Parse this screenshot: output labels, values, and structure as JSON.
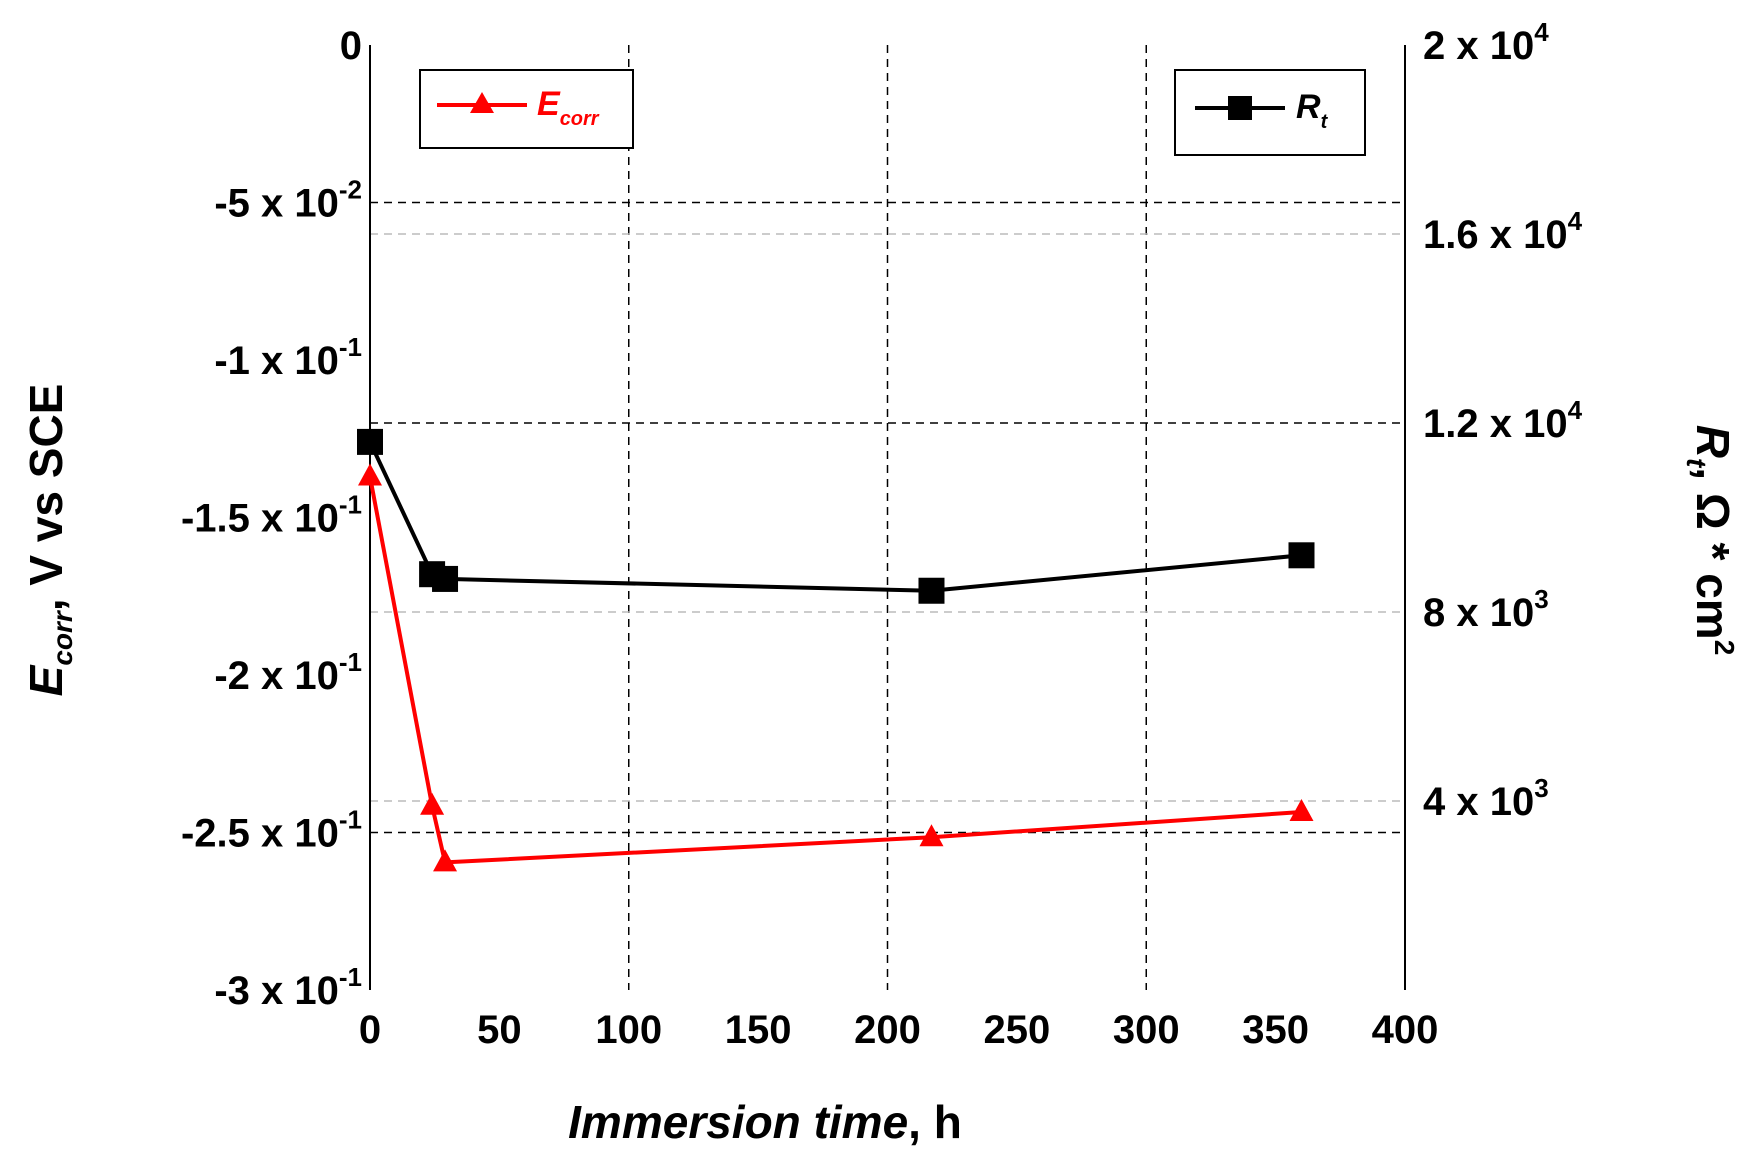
{
  "chart_data": {
    "type": "line",
    "xlabel_main": "Immersion time",
    "xlabel_unit": ", h",
    "xlim": [
      0,
      400
    ],
    "x_ticks": [
      "0",
      "50",
      "100",
      "150",
      "200",
      "250",
      "300",
      "350",
      "400"
    ],
    "left_axis": {
      "label_main": "E",
      "label_sub": "corr",
      "label_rest": ", V vs SCE",
      "ylim": [
        -0.3,
        0
      ],
      "ticks": [
        {
          "value": 0,
          "mantissa": "0",
          "exp": ""
        },
        {
          "value": -0.05,
          "mantissa": "-5 x 10",
          "exp": "-2"
        },
        {
          "value": -0.1,
          "mantissa": "-1 x 10",
          "exp": "-1"
        },
        {
          "value": -0.15,
          "mantissa": "-1.5 x 10",
          "exp": "-1"
        },
        {
          "value": -0.2,
          "mantissa": "-2 x 10",
          "exp": "-1"
        },
        {
          "value": -0.25,
          "mantissa": "-2.5 x 10",
          "exp": "-1"
        },
        {
          "value": -0.3,
          "mantissa": "-3 x 10",
          "exp": "-1"
        }
      ]
    },
    "right_axis": {
      "label_main": "R",
      "label_sub": "t",
      "label_rest": ", Ω * cm",
      "label_sup": "2",
      "ylim": [
        0,
        20000
      ],
      "ticks": [
        {
          "value": 20000,
          "mantissa": "2 x 10",
          "exp": "4"
        },
        {
          "value": 16000,
          "mantissa": "1.6 x 10",
          "exp": "4"
        },
        {
          "value": 12000,
          "mantissa": "1.2 x 10",
          "exp": "4"
        },
        {
          "value": 8000,
          "mantissa": "8 x 10",
          "exp": "3"
        },
        {
          "value": 4000,
          "mantissa": "4 x 10",
          "exp": "3"
        }
      ]
    },
    "series": [
      {
        "name": "E",
        "name_sub": "corr",
        "axis": "left",
        "color": "#ff0000",
        "marker": "triangle",
        "x": [
          0,
          24,
          29,
          217,
          360
        ],
        "y": [
          -0.137,
          -0.2415,
          -0.2595,
          -0.2515,
          -0.2435
        ]
      },
      {
        "name": "R",
        "name_sub": "t",
        "axis": "right",
        "color": "#000000",
        "marker": "square",
        "x": [
          0,
          24,
          29,
          217,
          360
        ],
        "y": [
          11600,
          8800,
          8700,
          8450,
          9200
        ]
      }
    ],
    "grid": true,
    "legend": [
      "top-left (Ecorr)",
      "top-right (Rt)"
    ]
  }
}
